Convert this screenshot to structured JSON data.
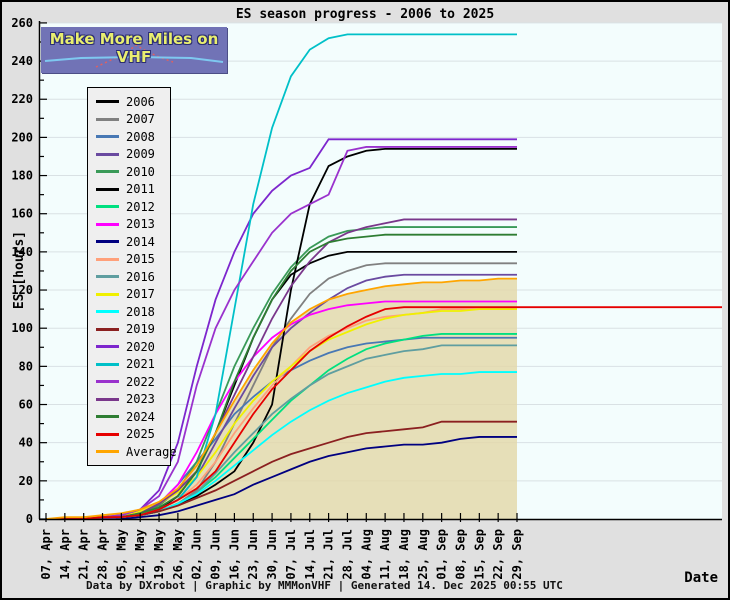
{
  "header": {
    "title": "ES season progress - 2006 to 2025"
  },
  "logo": {
    "text": "Make More Miles on VHF"
  },
  "axes": {
    "y_label": "ES [hours]",
    "x_corner_label": "Date"
  },
  "footer": {
    "credits": "Data by DXrobot  |  Graphic by MMMonVHF  |  Generated 14. Dec 2025 00:55 UTC"
  },
  "colors": {
    "plot_bg": "#f3fdfd",
    "grid": "#d9e1e4",
    "outer_bg": "#e0e0e0",
    "avg_fill": "rgba(226,215,166,0.8)"
  },
  "chart_data": {
    "type": "line",
    "title": "ES season progress - 2006 to 2025",
    "xlabel": "Date",
    "ylabel": "ES [hours]",
    "ylim": [
      0,
      260
    ],
    "y_tick_step": 20,
    "y_minor_step": 10,
    "grid": "horizontal",
    "legend_position": "upper-left",
    "categories": [
      "07, Apr",
      "14, Apr",
      "21, Apr",
      "28, Apr",
      "05, May",
      "12, May",
      "19, May",
      "26, May",
      "02, Jun",
      "09, Jun",
      "16, Jun",
      "23, Jun",
      "30, Jun",
      "07, Jul",
      "14, Jul",
      "21, Jul",
      "28, Jul",
      "04, Aug",
      "11, Aug",
      "18, Aug",
      "25, Aug",
      "01, Sep",
      "08, Sep",
      "15, Sep",
      "22, Sep",
      "29, Sep"
    ],
    "series": [
      {
        "name": "2006",
        "color": "#000000",
        "values": [
          0,
          0,
          0,
          1,
          1,
          2,
          5,
          12,
          25,
          45,
          70,
          95,
          115,
          128,
          134,
          138,
          140,
          140,
          140,
          140,
          140,
          140,
          140,
          140,
          140,
          140
        ]
      },
      {
        "name": "2007",
        "color": "#808080",
        "values": [
          0,
          0,
          0,
          0,
          1,
          2,
          4,
          8,
          15,
          30,
          50,
          70,
          90,
          105,
          118,
          126,
          130,
          133,
          134,
          134,
          134,
          134,
          134,
          134,
          134,
          134
        ]
      },
      {
        "name": "2008",
        "color": "#4878b4",
        "values": [
          0,
          0,
          0,
          1,
          1,
          3,
          8,
          18,
          30,
          42,
          55,
          64,
          72,
          78,
          83,
          87,
          90,
          92,
          93,
          94,
          95,
          95,
          95,
          95,
          95,
          95
        ]
      },
      {
        "name": "2009",
        "color": "#6a4aa0",
        "values": [
          0,
          0,
          0,
          0,
          1,
          2,
          5,
          10,
          22,
          40,
          58,
          75,
          90,
          100,
          108,
          115,
          121,
          125,
          127,
          128,
          128,
          128,
          128,
          128,
          128,
          128
        ]
      },
      {
        "name": "2010",
        "color": "#3a9a58",
        "values": [
          0,
          0,
          0,
          1,
          1,
          3,
          7,
          15,
          30,
          55,
          80,
          100,
          118,
          132,
          142,
          148,
          151,
          152,
          153,
          153,
          153,
          153,
          153,
          153,
          153,
          153
        ]
      },
      {
        "name": "2011",
        "color": "#000000",
        "values": [
          0,
          0,
          0,
          0,
          1,
          2,
          4,
          8,
          12,
          18,
          25,
          40,
          60,
          120,
          165,
          185,
          190,
          193,
          194,
          194,
          194,
          194,
          194,
          194,
          194,
          194
        ]
      },
      {
        "name": "2012",
        "color": "#00e080",
        "values": [
          0,
          0,
          0,
          0,
          1,
          2,
          4,
          8,
          14,
          22,
          32,
          42,
          52,
          62,
          70,
          78,
          84,
          89,
          92,
          94,
          96,
          97,
          97,
          97,
          97,
          97
        ]
      },
      {
        "name": "2013",
        "color": "#ff00ff",
        "values": [
          0,
          0,
          0,
          1,
          2,
          4,
          8,
          18,
          35,
          55,
          72,
          85,
          95,
          102,
          107,
          110,
          112,
          113,
          114,
          114,
          114,
          114,
          114,
          114,
          114,
          114
        ]
      },
      {
        "name": "2014",
        "color": "#000080",
        "values": [
          0,
          0,
          0,
          0,
          0,
          1,
          2,
          4,
          7,
          10,
          13,
          18,
          22,
          26,
          30,
          33,
          35,
          37,
          38,
          39,
          39,
          40,
          42,
          43,
          43,
          43
        ]
      },
      {
        "name": "2015",
        "color": "#ffa07a",
        "values": [
          0,
          0,
          0,
          0,
          1,
          2,
          5,
          10,
          18,
          30,
          45,
          58,
          70,
          80,
          90,
          96,
          100,
          104,
          106,
          107,
          108,
          110,
          110,
          110,
          110,
          110
        ]
      },
      {
        "name": "2016",
        "color": "#5f9ea0",
        "values": [
          0,
          0,
          0,
          0,
          1,
          2,
          4,
          8,
          14,
          24,
          35,
          45,
          55,
          63,
          70,
          76,
          80,
          84,
          86,
          88,
          89,
          91,
          91,
          91,
          91,
          91
        ]
      },
      {
        "name": "2017",
        "color": "#f0f000",
        "values": [
          0,
          0,
          1,
          1,
          2,
          4,
          8,
          14,
          22,
          35,
          50,
          62,
          72,
          80,
          88,
          94,
          98,
          102,
          105,
          107,
          108,
          109,
          109,
          110,
          110,
          110
        ]
      },
      {
        "name": "2018",
        "color": "#00ffff",
        "values": [
          0,
          0,
          0,
          0,
          1,
          2,
          4,
          8,
          13,
          20,
          28,
          36,
          44,
          51,
          57,
          62,
          66,
          69,
          72,
          74,
          75,
          76,
          76,
          77,
          77,
          77
        ]
      },
      {
        "name": "2019",
        "color": "#8b2020",
        "values": [
          0,
          0,
          0,
          0,
          1,
          2,
          4,
          7,
          11,
          15,
          20,
          25,
          30,
          34,
          37,
          40,
          43,
          45,
          46,
          47,
          48,
          51,
          51,
          51,
          51,
          51
        ]
      },
      {
        "name": "2020",
        "color": "#7d26cd",
        "values": [
          0,
          0,
          0,
          1,
          2,
          5,
          15,
          40,
          80,
          115,
          140,
          160,
          172,
          180,
          184,
          199,
          199,
          199,
          199,
          199,
          199,
          199,
          199,
          199,
          199,
          199
        ]
      },
      {
        "name": "2021",
        "color": "#00c0c8",
        "values": [
          0,
          0,
          0,
          0,
          1,
          2,
          5,
          10,
          22,
          55,
          110,
          165,
          205,
          232,
          246,
          252,
          254,
          254,
          254,
          254,
          254,
          254,
          254,
          254,
          254,
          254
        ]
      },
      {
        "name": "2022",
        "color": "#9a32cd",
        "values": [
          0,
          0,
          0,
          1,
          2,
          5,
          12,
          30,
          70,
          100,
          120,
          135,
          150,
          160,
          165,
          170,
          193,
          195,
          195,
          195,
          195,
          195,
          195,
          195,
          195,
          195
        ]
      },
      {
        "name": "2023",
        "color": "#7a378b",
        "values": [
          0,
          0,
          0,
          0,
          1,
          3,
          8,
          15,
          25,
          45,
          65,
          85,
          105,
          122,
          135,
          145,
          150,
          153,
          155,
          157,
          157,
          157,
          157,
          157,
          157,
          157
        ]
      },
      {
        "name": "2024",
        "color": "#2e7d32",
        "values": [
          0,
          0,
          0,
          1,
          1,
          3,
          6,
          12,
          25,
          45,
          72,
          95,
          115,
          130,
          140,
          145,
          147,
          148,
          149,
          149,
          149,
          149,
          149,
          149,
          149,
          149
        ]
      },
      {
        "name": "2025",
        "color": "#e60000",
        "extends_to_plot_edge": true,
        "values": [
          0,
          0,
          0,
          1,
          1,
          2,
          5,
          10,
          16,
          25,
          40,
          55,
          68,
          78,
          88,
          95,
          101,
          106,
          110,
          111,
          111,
          111,
          111,
          111,
          111,
          111
        ]
      },
      {
        "name": "Average",
        "color": "#ffa500",
        "fill": true,
        "values": [
          0,
          1,
          1,
          2,
          3,
          5,
          9,
          16,
          28,
          45,
          62,
          78,
          92,
          103,
          110,
          115,
          118,
          120,
          122,
          123,
          124,
          124,
          125,
          125,
          126,
          126
        ]
      }
    ]
  }
}
